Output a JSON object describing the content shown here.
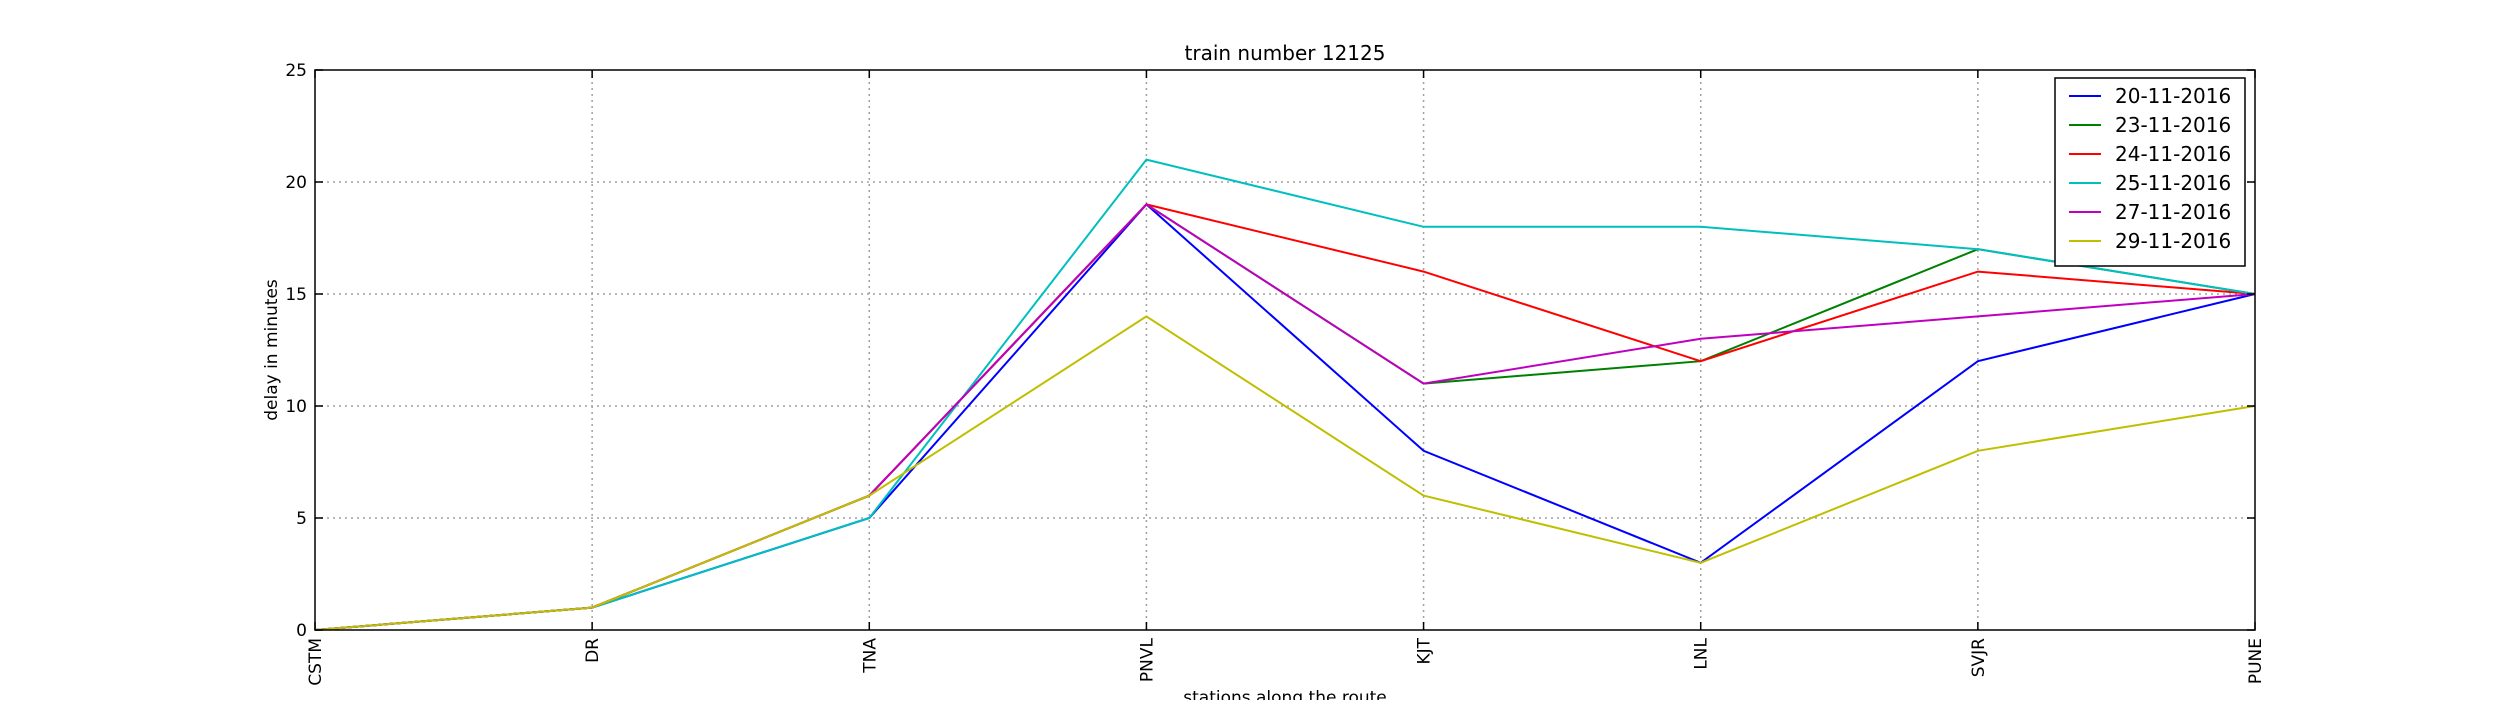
{
  "chart_data": {
    "type": "line",
    "title": "train number 12125",
    "xlabel": "stations along the route",
    "ylabel": "delay in minutes",
    "categories": [
      "CSTM",
      "DR",
      "TNA",
      "PNVL",
      "KJT",
      "LNL",
      "SVJR",
      "PUNE"
    ],
    "ylim": [
      0,
      25
    ],
    "yticks": [
      0,
      5,
      10,
      15,
      20,
      25
    ],
    "grid": true,
    "legend_position": "top-right",
    "series": [
      {
        "name": "20-11-2016",
        "color": "#0000ff",
        "values": [
          0,
          1,
          5,
          19,
          8,
          3,
          12,
          15
        ]
      },
      {
        "name": "23-11-2016",
        "color": "#008000",
        "values": [
          0,
          1,
          6,
          19,
          11,
          12,
          17,
          15
        ]
      },
      {
        "name": "24-11-2016",
        "color": "#ff0000",
        "values": [
          0,
          1,
          6,
          19,
          16,
          12,
          16,
          15
        ]
      },
      {
        "name": "25-11-2016",
        "color": "#00bfbf",
        "values": [
          0,
          1,
          5,
          21,
          18,
          18,
          17,
          15
        ]
      },
      {
        "name": "27-11-2016",
        "color": "#bf00bf",
        "values": [
          0,
          1,
          6,
          19,
          11,
          13,
          14,
          15
        ]
      },
      {
        "name": "29-11-2016",
        "color": "#bfbf00",
        "values": [
          0,
          1,
          6,
          14,
          6,
          3,
          8,
          10
        ]
      }
    ]
  }
}
